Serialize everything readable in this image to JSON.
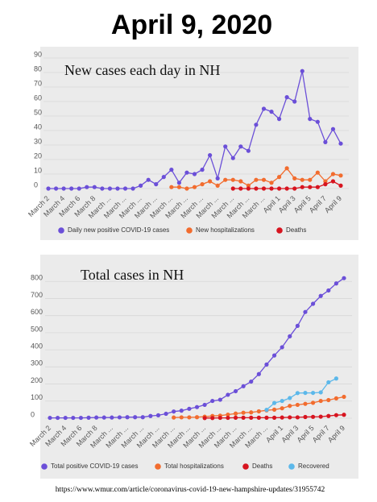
{
  "title": "April 9, 2020",
  "source": "https://www.wmur.com/article/coronavirus-covid-19-new-hampshire-updates/31955742",
  "chart_data": [
    {
      "type": "line",
      "title": "New cases each day in NH",
      "categories": [
        "March 2",
        null,
        "March 4",
        null,
        "March 6",
        null,
        "March 8",
        null,
        "March ...",
        null,
        "March ...",
        null,
        "March ...",
        null,
        "March ...",
        null,
        "March ...",
        null,
        "March ...",
        null,
        "March ...",
        null,
        "March ...",
        null,
        "March ...",
        null,
        "March ...",
        null,
        "March ...",
        null,
        "April 1",
        null,
        "April 3",
        null,
        "April 5",
        null,
        "April 7",
        null,
        "April 9"
      ],
      "series": [
        {
          "name": "Daily new positive COVID-19 cases",
          "color": "#6b4fd8",
          "values": [
            0,
            0,
            0,
            0,
            0,
            1,
            1,
            0,
            0,
            0,
            0,
            0,
            2,
            6,
            3,
            8,
            13,
            4,
            11,
            10,
            13,
            23,
            7,
            29,
            21,
            29,
            26,
            44,
            55,
            53,
            48,
            63,
            60,
            81,
            48,
            46,
            32,
            41,
            31
          ]
        },
        {
          "name": "New hospitalizations",
          "color": "#f26c2e",
          "values": [
            null,
            null,
            null,
            null,
            null,
            null,
            null,
            null,
            null,
            null,
            null,
            null,
            null,
            null,
            null,
            null,
            1,
            1,
            0,
            1,
            3,
            5,
            2,
            6,
            6,
            5,
            2,
            6,
            6,
            4,
            8,
            14,
            7,
            6,
            6,
            11,
            5,
            10,
            9
          ]
        },
        {
          "name": "Deaths",
          "color": "#d7141f",
          "values": [
            null,
            null,
            null,
            null,
            null,
            null,
            null,
            null,
            null,
            null,
            null,
            null,
            null,
            null,
            null,
            null,
            null,
            null,
            null,
            null,
            null,
            null,
            null,
            null,
            0,
            0,
            0,
            0,
            0,
            0,
            0,
            0,
            0,
            1,
            1,
            1,
            3,
            5,
            2
          ]
        }
      ],
      "ylim": [
        0,
        90
      ],
      "yticks": [
        0,
        10,
        20,
        30,
        40,
        50,
        60,
        70,
        80,
        90
      ],
      "grid": true,
      "legend": "bottom"
    },
    {
      "type": "line",
      "title": "Total cases in NH",
      "categories": [
        "March 2",
        null,
        "March 4",
        null,
        "March 6",
        null,
        "March 8",
        null,
        "March ...",
        null,
        "March ...",
        null,
        "March ...",
        null,
        "March ...",
        null,
        "March ...",
        null,
        "March ...",
        null,
        "March ...",
        null,
        "March ...",
        null,
        "March ...",
        null,
        "March ...",
        null,
        "March ...",
        null,
        "April 1",
        null,
        "April 3",
        null,
        "April 5",
        null,
        "April 7",
        null,
        "April 9"
      ],
      "series": [
        {
          "name": "Total positive COVID-19 cases",
          "color": "#6b4fd8",
          "values": [
            2,
            2,
            2,
            2,
            2,
            3,
            4,
            4,
            4,
            5,
            6,
            6,
            6,
            13,
            17,
            26,
            39,
            44,
            55,
            65,
            78,
            101,
            108,
            137,
            158,
            187,
            214,
            258,
            314,
            367,
            415,
            479,
            540,
            621,
            669,
            715,
            747,
            788,
            819
          ]
        },
        {
          "name": "Total hospitalizations",
          "color": "#f26c2e",
          "values": [
            null,
            null,
            null,
            null,
            null,
            null,
            null,
            null,
            null,
            null,
            null,
            null,
            null,
            null,
            null,
            null,
            4,
            5,
            5,
            6,
            9,
            13,
            15,
            21,
            27,
            32,
            34,
            40,
            46,
            50,
            58,
            72,
            78,
            84,
            90,
            101,
            106,
            116,
            125
          ]
        },
        {
          "name": "Deaths",
          "color": "#d7141f",
          "values": [
            null,
            null,
            null,
            null,
            null,
            null,
            null,
            null,
            null,
            null,
            null,
            null,
            null,
            null,
            null,
            null,
            null,
            null,
            null,
            null,
            1,
            1,
            2,
            2,
            3,
            3,
            3,
            3,
            3,
            3,
            4,
            5,
            5,
            7,
            8,
            9,
            13,
            18,
            20
          ]
        },
        {
          "name": "Recovered",
          "color": "#5cb8ea",
          "values": [
            null,
            null,
            null,
            null,
            null,
            null,
            null,
            null,
            null,
            null,
            null,
            null,
            null,
            null,
            null,
            null,
            null,
            null,
            null,
            null,
            null,
            null,
            null,
            null,
            null,
            null,
            null,
            null,
            49,
            89,
            101,
            118,
            147,
            148,
            148,
            151,
            210,
            232,
            null
          ]
        }
      ],
      "ylim": [
        0,
        900
      ],
      "yticks": [
        0,
        100,
        200,
        300,
        400,
        500,
        600,
        700,
        800
      ],
      "grid": true,
      "legend": "bottom"
    }
  ]
}
